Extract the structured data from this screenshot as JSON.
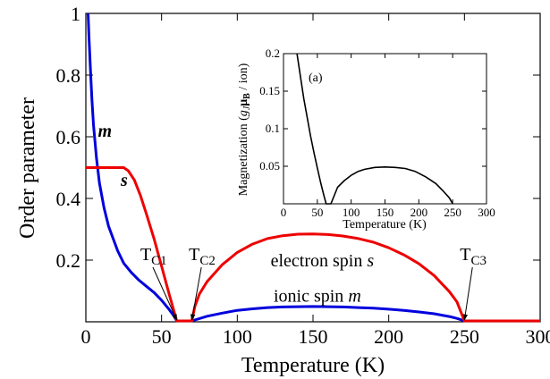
{
  "chart_data": [
    {
      "type": "line",
      "xlabel": "Temperature (K)",
      "ylabel": "Order parameter",
      "xlim": [
        0,
        300
      ],
      "ylim": [
        0,
        1
      ],
      "xticks": [
        "0",
        "50",
        "100",
        "150",
        "200",
        "250",
        "300"
      ],
      "xtick_values": [
        0,
        50,
        100,
        150,
        200,
        250,
        300
      ],
      "yticks": [
        "0.2",
        "0.4",
        "0.6",
        "0.8",
        "1"
      ],
      "ytick_values": [
        0.2,
        0.4,
        0.6,
        0.8,
        1.0
      ],
      "grid": false,
      "series": [
        {
          "name": "m",
          "color": "#0000dd",
          "points": [
            [
              1.5,
              1.0
            ],
            [
              2,
              0.93
            ],
            [
              3,
              0.82
            ],
            [
              4,
              0.72
            ],
            [
              5,
              0.64
            ],
            [
              7,
              0.53
            ],
            [
              9,
              0.45
            ],
            [
              12,
              0.37
            ],
            [
              15,
              0.31
            ],
            [
              18,
              0.27
            ],
            [
              21,
              0.23
            ],
            [
              25,
              0.19
            ],
            [
              30,
              0.16
            ],
            [
              35,
              0.135
            ],
            [
              40,
              0.115
            ],
            [
              45,
              0.095
            ],
            [
              50,
              0.07
            ],
            [
              55,
              0.04
            ],
            [
              58,
              0.02
            ],
            [
              60,
              0.003
            ],
            [
              70,
              0.003
            ],
            [
              80,
              0.018
            ],
            [
              90,
              0.028
            ],
            [
              100,
              0.037
            ],
            [
              110,
              0.042
            ],
            [
              120,
              0.046
            ],
            [
              130,
              0.048
            ],
            [
              140,
              0.049
            ],
            [
              150,
              0.0495
            ],
            [
              160,
              0.049
            ],
            [
              170,
              0.048
            ],
            [
              180,
              0.046
            ],
            [
              190,
              0.044
            ],
            [
              200,
              0.041
            ],
            [
              210,
              0.037
            ],
            [
              220,
              0.032
            ],
            [
              230,
              0.026
            ],
            [
              240,
              0.017
            ],
            [
              245,
              0.011
            ],
            [
              250,
              0.003
            ],
            [
              300,
              0.003
            ]
          ]
        },
        {
          "name": "s",
          "color": "#ee0000",
          "points": [
            [
              0,
              0.5
            ],
            [
              25,
              0.5
            ],
            [
              28,
              0.49
            ],
            [
              32,
              0.46
            ],
            [
              36,
              0.41
            ],
            [
              40,
              0.35
            ],
            [
              45,
              0.27
            ],
            [
              50,
              0.18
            ],
            [
              55,
              0.09
            ],
            [
              60,
              0.003
            ],
            [
              70,
              0.003
            ],
            [
              72,
              0.05
            ],
            [
              75,
              0.09
            ],
            [
              80,
              0.13
            ],
            [
              90,
              0.185
            ],
            [
              100,
              0.225
            ],
            [
              110,
              0.252
            ],
            [
              120,
              0.27
            ],
            [
              130,
              0.279
            ],
            [
              140,
              0.284
            ],
            [
              150,
              0.285
            ],
            [
              160,
              0.283
            ],
            [
              170,
              0.278
            ],
            [
              180,
              0.27
            ],
            [
              190,
              0.258
            ],
            [
              200,
              0.24
            ],
            [
              210,
              0.217
            ],
            [
              220,
              0.188
            ],
            [
              230,
              0.15
            ],
            [
              240,
              0.098
            ],
            [
              245,
              0.065
            ],
            [
              250,
              0.003
            ],
            [
              300,
              0.003
            ]
          ]
        }
      ],
      "annotations": [
        {
          "label": "m",
          "x": 8,
          "y": 0.6,
          "color": "#0000dd"
        },
        {
          "label": "s",
          "x": 23,
          "y": 0.44,
          "color": "#ee0000"
        },
        {
          "label": "T",
          "sub": "C1",
          "x": 36,
          "y": 0.2,
          "arrow_to": [
            60,
            0.003
          ]
        },
        {
          "label": "T",
          "sub": "C2",
          "x": 68,
          "y": 0.2,
          "arrow_to": [
            70,
            0.003
          ]
        },
        {
          "label": "T",
          "sub": "C3",
          "x": 247,
          "y": 0.2,
          "arrow_to": [
            250,
            0.003
          ]
        },
        {
          "label": "electron spin s",
          "x": 122,
          "y": 0.18,
          "color": "#ee0000"
        },
        {
          "label": "ionic spin m",
          "x": 124,
          "y": 0.065,
          "color": "#0000dd"
        }
      ]
    },
    {
      "type": "line",
      "panel_label": "(a)",
      "xlabel": "Temperature (K)",
      "ylabel": "Magnetization (g_Jμ_B / ion)",
      "xlim": [
        0,
        300
      ],
      "ylim": [
        0,
        0.2
      ],
      "xticks": [
        "0",
        "50",
        "100",
        "150",
        "200",
        "250",
        "300"
      ],
      "xtick_values": [
        0,
        50,
        100,
        150,
        200,
        250,
        300
      ],
      "yticks": [
        "0.05",
        "0.1",
        "0.15",
        "0.2"
      ],
      "ytick_values": [
        0.05,
        0.1,
        0.15,
        0.2
      ],
      "series": [
        {
          "name": "",
          "color": "#000000",
          "points": [
            [
              20,
              0.2
            ],
            [
              25,
              0.17
            ],
            [
              30,
              0.14
            ],
            [
              35,
              0.115
            ],
            [
              40,
              0.09
            ],
            [
              45,
              0.068
            ],
            [
              50,
              0.048
            ],
            [
              55,
              0.028
            ],
            [
              60,
              0.01
            ],
            [
              63,
              0.0
            ],
            [
              70,
              0.0
            ],
            [
              80,
              0.022
            ],
            [
              90,
              0.031
            ],
            [
              100,
              0.038
            ],
            [
              110,
              0.043
            ],
            [
              120,
              0.046
            ],
            [
              135,
              0.0485
            ],
            [
              150,
              0.049
            ],
            [
              165,
              0.0485
            ],
            [
              180,
              0.047
            ],
            [
              195,
              0.043
            ],
            [
              210,
              0.036
            ],
            [
              225,
              0.027
            ],
            [
              235,
              0.018
            ],
            [
              245,
              0.008
            ],
            [
              250,
              0.0
            ]
          ]
        }
      ]
    }
  ]
}
